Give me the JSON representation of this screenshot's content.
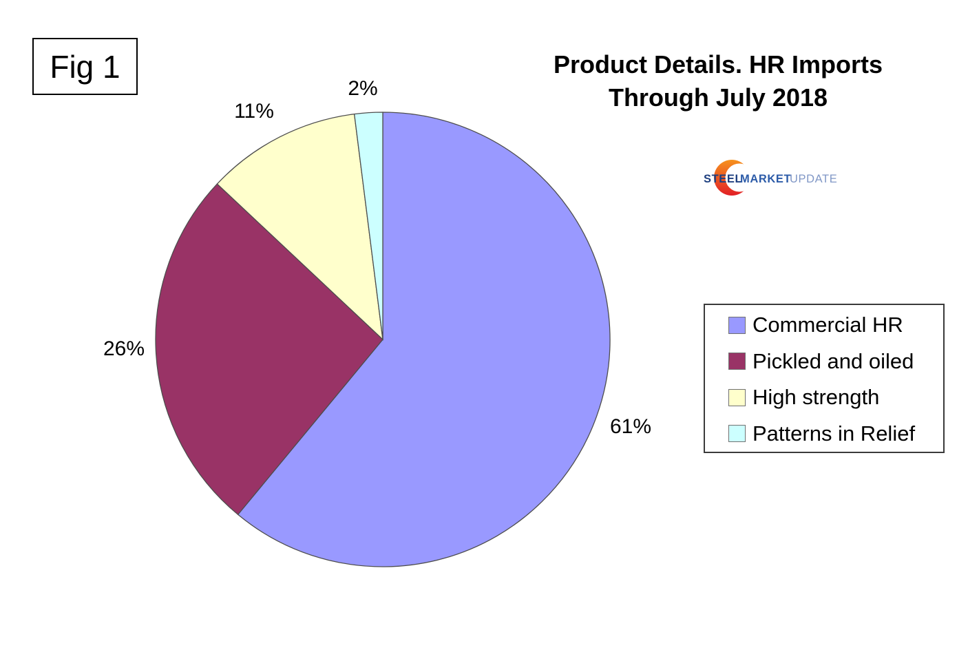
{
  "figure_label": "Fig 1",
  "title": {
    "line1": "Product Details. HR Imports",
    "line2": "Through July 2018"
  },
  "logo": {
    "part1": "STEEL",
    "part2": "MARKET",
    "part3": "UPDATE",
    "colors": {
      "part1": "#1E3F7F",
      "part2": "#2C5BA8",
      "part3": "#8097C6",
      "crescent_top": "#F6921E",
      "crescent_bottom": "#E21F26"
    }
  },
  "chart_data": {
    "type": "pie",
    "title": "Product Details. HR Imports Through July 2018",
    "categories": [
      "Commercial HR",
      "Pickled and oiled",
      "High strength",
      "Patterns in Relief"
    ],
    "values": [
      61,
      26,
      11,
      2
    ],
    "unit": "percent",
    "data_labels": [
      "61%",
      "26%",
      "11%",
      "2%"
    ],
    "colors": [
      "#9999FF",
      "#993366",
      "#FFFFCC",
      "#CCFFFF"
    ],
    "slice_border_color": "#4d4d4d",
    "start_angle_deg": 0,
    "direction": "clockwise",
    "legend_position": "right",
    "background": "#FFFFFF"
  }
}
